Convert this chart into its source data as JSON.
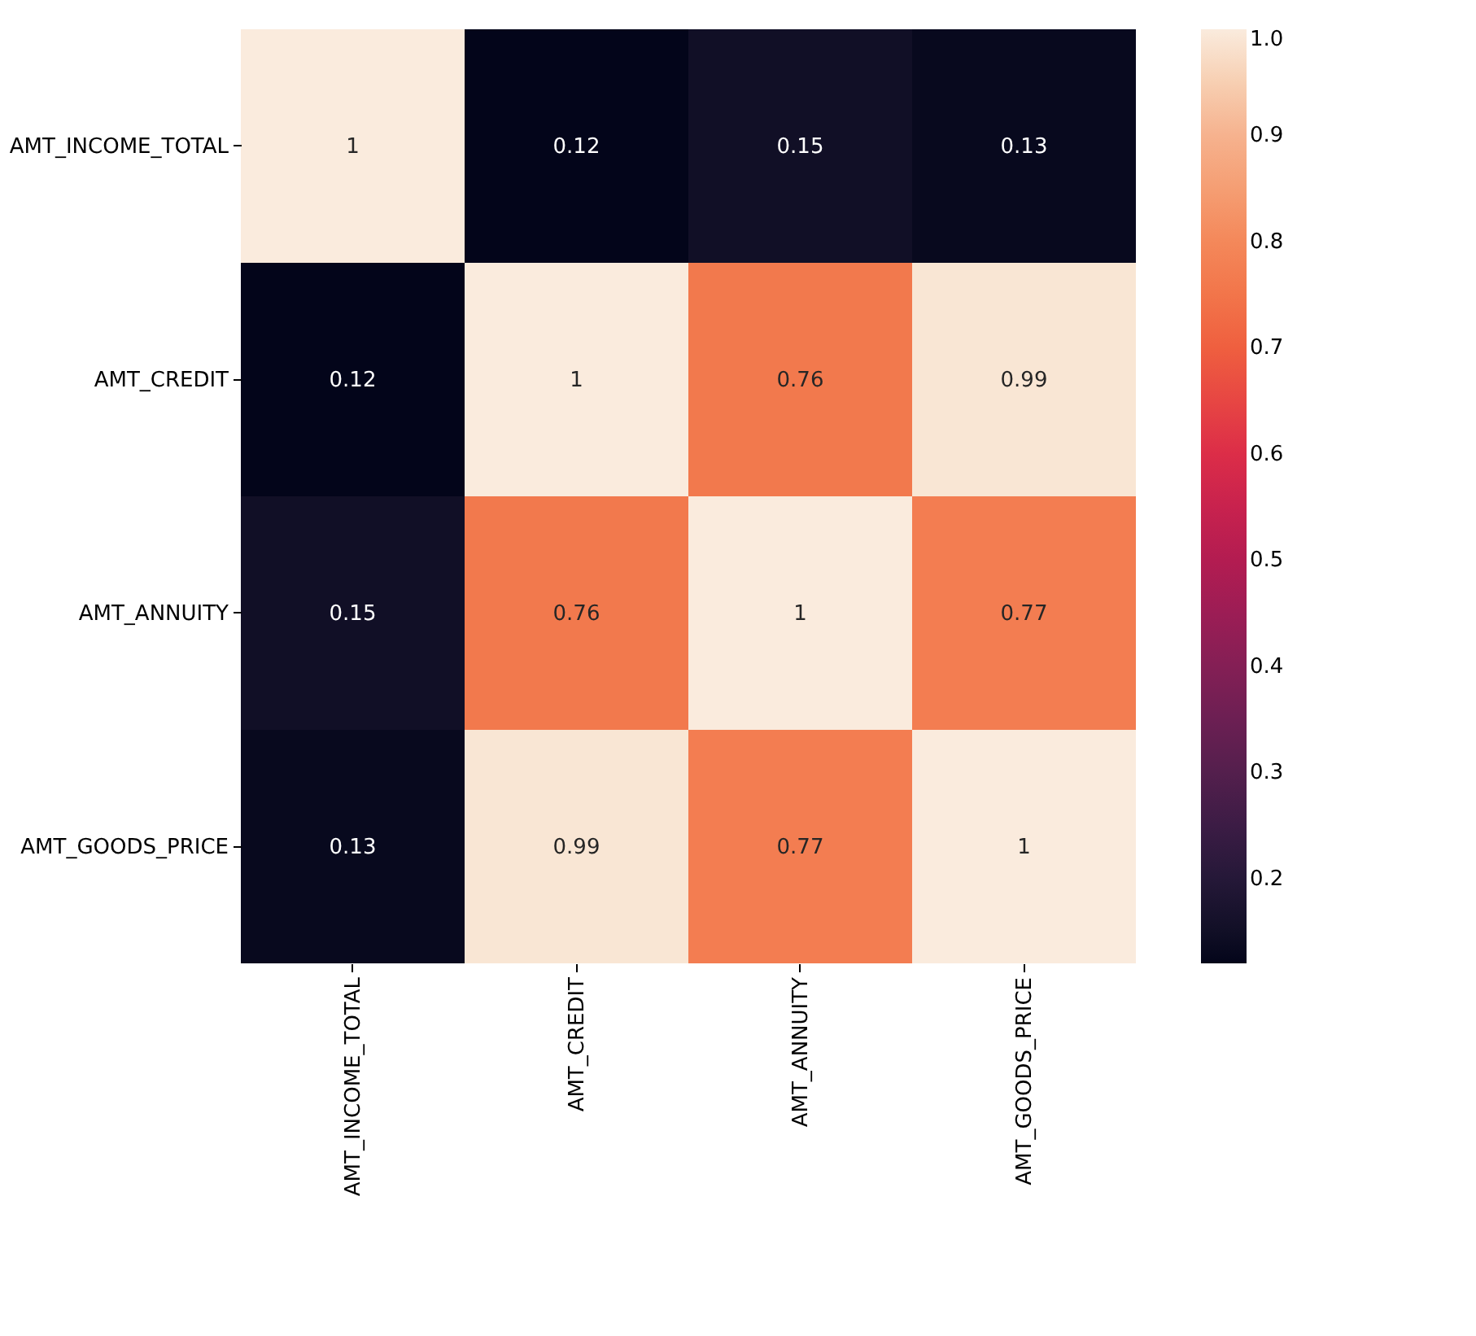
{
  "chart_data": {
    "type": "heatmap",
    "categories": [
      "AMT_INCOME_TOTAL",
      "AMT_CREDIT",
      "AMT_ANNUITY",
      "AMT_GOODS_PRICE"
    ],
    "y_categories": [
      "AMT_INCOME_TOTAL",
      "AMT_CREDIT",
      "AMT_ANNUITY",
      "AMT_GOODS_PRICE"
    ],
    "cells": [
      [
        1,
        0.12,
        0.15,
        0.13
      ],
      [
        0.12,
        1,
        0.76,
        0.99
      ],
      [
        0.15,
        0.76,
        1,
        0.77
      ],
      [
        0.13,
        0.99,
        0.77,
        1
      ]
    ],
    "data_labels": true,
    "clim": [
      0.12,
      1.0
    ],
    "cticks": [
      0.2,
      0.3,
      0.4,
      0.5,
      0.6,
      0.7,
      0.8,
      0.9,
      {
        "value": 1.0,
        "label": "1.0"
      }
    ]
  }
}
